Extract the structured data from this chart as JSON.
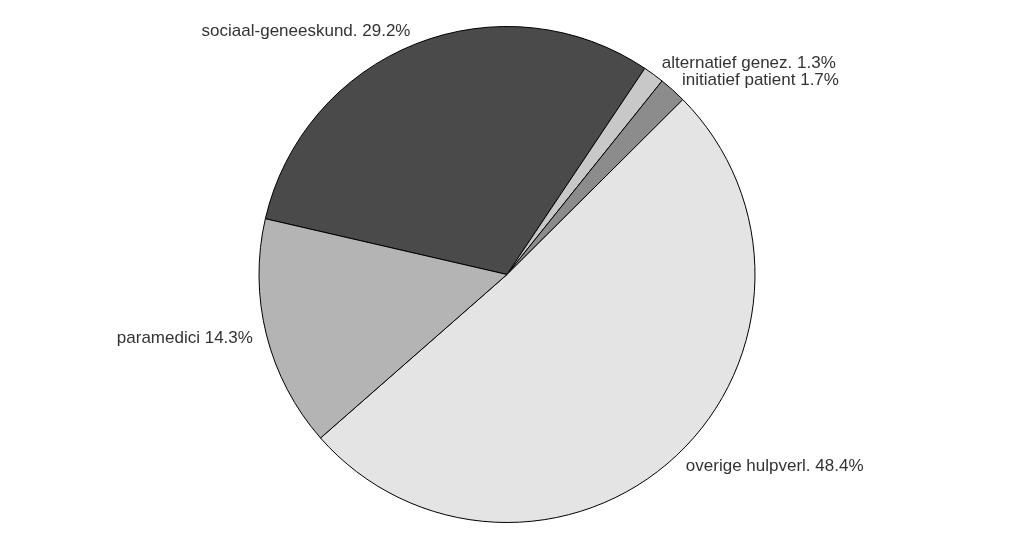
{
  "chart_data": {
    "type": "pie",
    "categories": [
      "sociaal-geneeskund.",
      "alternatief genez.",
      "initiatief patient",
      "overige hulpverl.",
      "paramedici"
    ],
    "values": [
      29.2,
      1.3,
      1.7,
      48.4,
      14.3
    ],
    "value_labels": [
      "29.2%",
      "1.3%",
      "1.7%",
      "48.4%",
      "14.3%"
    ],
    "colors": [
      "#4a4a4a",
      "#c8c8c8",
      "#8c8c8c",
      "#e4e4e4",
      "#b4b4b4"
    ]
  }
}
